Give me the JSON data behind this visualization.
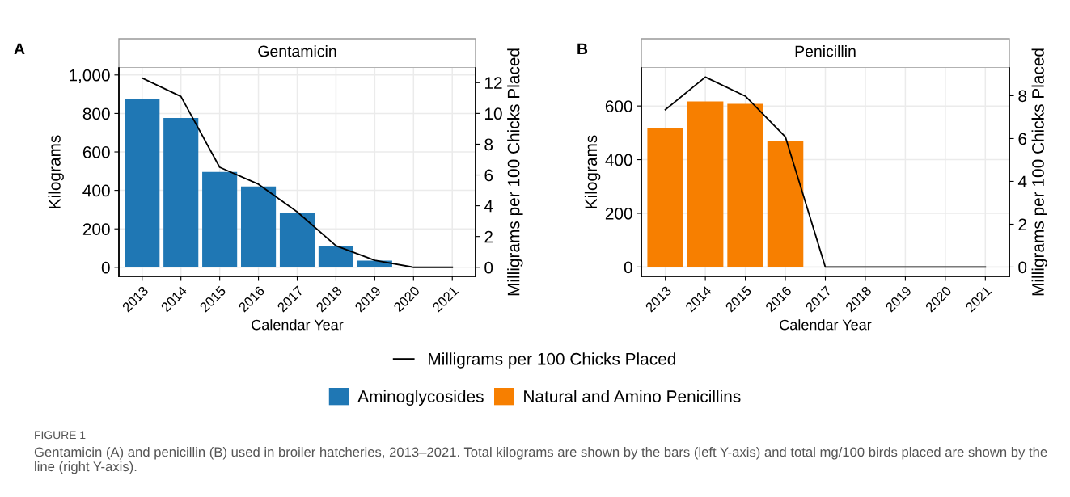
{
  "chart_data": [
    {
      "type": "bar",
      "title": "Gentamicin",
      "xlabel": "Calendar Year",
      "ylabel": "Kilograms",
      "y2label": "Milligrams per 100 Chicks Placed",
      "annotations": [
        "A",
        "FIGURE 1",
        "Gentamicin (A) and penicillin (B) used in broiler hatcheries, 2013–2021. Total kilograms are shown by the bars (left Y-axis) and total mg/100 birds placed are shown by the line (right Y-axis)."
      ],
      "categories": [
        "2013",
        "2014",
        "2015",
        "2016",
        "2017",
        "2018",
        "2019",
        "2020",
        "2021"
      ],
      "series": [
        {
          "name": "Aminoglycosides",
          "color": "#1f77b4",
          "values": [
            875,
            776,
            496,
            420,
            282,
            108,
            35,
            null,
            null
          ]
        },
        {
          "name": "Milligrams per 100 Chicks Placed",
          "type": "line",
          "axis": "y2",
          "color": "#000000",
          "values": [
            12.3,
            11.1,
            6.5,
            5.4,
            3.6,
            1.4,
            0.45,
            0,
            0
          ]
        }
      ],
      "ylim": [
        -47,
        1037
      ],
      "yticks": [
        0,
        200,
        400,
        600,
        800,
        {
          "value": 1000,
          "label": "1,000"
        }
      ],
      "y2lim": [
        -0.59,
        12.96
      ],
      "y2ticks": [
        0,
        2,
        4,
        6,
        8,
        10,
        12
      ],
      "grid": true,
      "legend": "bottom"
    },
    {
      "type": "bar",
      "title": "Penicillin",
      "xlabel": "Calendar Year",
      "ylabel": "Kilograms",
      "y2label": "Milligrams per 100 Chicks Placed",
      "annotations": [
        "B"
      ],
      "categories": [
        "2013",
        "2014",
        "2015",
        "2016",
        "2017",
        "2018",
        "2019",
        "2020",
        "2021"
      ],
      "series": [
        {
          "name": "Natural and Amino Penicillins",
          "color": "#f77f00",
          "values": [
            519,
            617,
            608,
            470,
            null,
            null,
            null,
            null,
            null
          ]
        },
        {
          "type": "line",
          "axis": "y2",
          "color": "#000000",
          "values": [
            7.35,
            8.87,
            7.98,
            6.08,
            0,
            0,
            0,
            0,
            0
          ]
        }
      ],
      "ylim": [
        -35,
        742
      ],
      "yticks": [
        0,
        200,
        400,
        600
      ],
      "y2lim": [
        -0.435,
        9.3
      ],
      "y2ticks": [
        0,
        2,
        4,
        6,
        8
      ],
      "grid": true,
      "legend": "bottom"
    }
  ]
}
